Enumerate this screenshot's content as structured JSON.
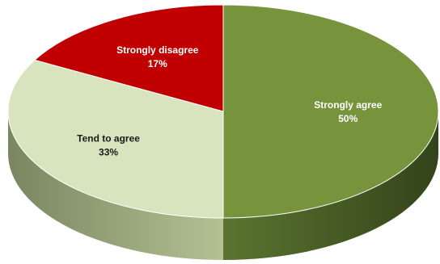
{
  "chart_data": {
    "type": "pie",
    "style": "3d",
    "slices": [
      {
        "category": "Strongly agree",
        "value": 50,
        "label": "50%",
        "color": "#77933c",
        "text_color": "#ffffff"
      },
      {
        "category": "Tend to agree",
        "value": 33,
        "label": "33%",
        "color": "#d7e4bd",
        "text_color": "#1a1a1a"
      },
      {
        "category": "Strongly disagree",
        "value": 17,
        "label": "17%",
        "color": "#c00000",
        "text_color": "#ffffff"
      }
    ],
    "title": "",
    "legend": "none"
  }
}
